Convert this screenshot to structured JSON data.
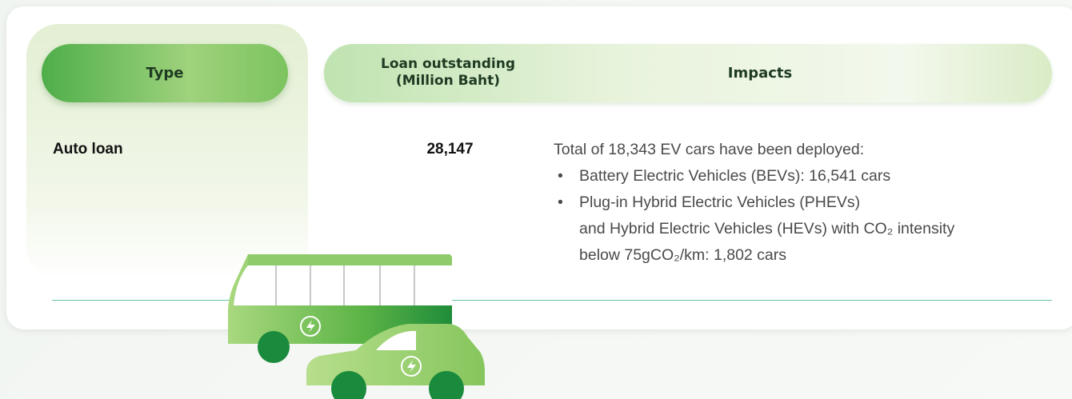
{
  "table": {
    "header": {
      "type": "Type",
      "loan": [
        "Loan outstanding",
        "(Million Baht)"
      ],
      "impacts": "Impacts"
    },
    "rows": [
      {
        "type": "Auto loan",
        "loan": "28,147",
        "impacts": {
          "intro": "Total of 18,343 EV cars have been deployed:",
          "bullets": [
            {
              "lines": [
                "Battery Electric Vehicles (BEVs): 16,541 cars"
              ]
            },
            {
              "lines": [
                "Plug-in Hybrid Electric Vehicles (PHEVs)",
                "and Hybrid Electric Vehicles (HEVs) with CO₂ intensity",
                "below 75gCO₂/km: 1,802 cars"
              ]
            }
          ]
        }
      }
    ]
  }
}
